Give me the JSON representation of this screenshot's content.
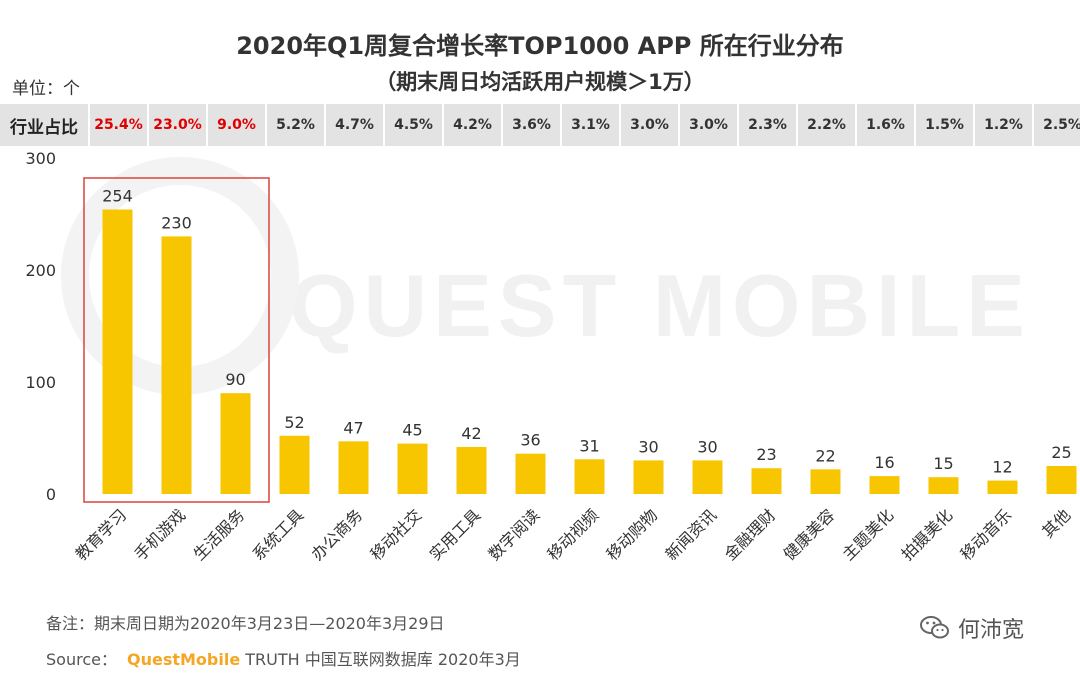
{
  "title": "2020年Q1周复合增长率TOP1000 APP 所在行业分布",
  "subtitle": "（期末周日均活跃用户规模＞1万）",
  "unit_label": "单位：个",
  "share_header": "行业占比",
  "shares": [
    "25.4%",
    "23.0%",
    "9.0%",
    "5.2%",
    "4.7%",
    "4.5%",
    "4.2%",
    "3.6%",
    "3.1%",
    "3.0%",
    "3.0%",
    "2.3%",
    "2.2%",
    "1.6%",
    "1.5%",
    "1.2%",
    "2.5%"
  ],
  "note": "备注：期末周日期为2020年3月23日—2020年3月29日",
  "source_prefix": "Source：",
  "source_brand": "QuestMobile",
  "source_suffix": "TRUTH 中国互联网数据库 2020年3月",
  "wechat_name": "何沛宽",
  "colors": {
    "bar": "#f7c600",
    "highlight_text": "#e00000",
    "highlight_box": "#d9443a",
    "share_bg": "#e3e3e3"
  },
  "chart_data": {
    "type": "bar",
    "title": "2020年Q1周复合增长率TOP1000 APP 所在行业分布",
    "ylabel": "单位：个",
    "xlabel": "",
    "ylim": [
      0,
      300
    ],
    "yticks": [
      0,
      100,
      200,
      300
    ],
    "categories": [
      "教育学习",
      "手机游戏",
      "生活服务",
      "系统工具",
      "办公商务",
      "移动社交",
      "实用工具",
      "数字阅读",
      "移动视频",
      "移动购物",
      "新闻资讯",
      "金融理财",
      "健康美容",
      "主题美化",
      "拍摄美化",
      "移动音乐",
      "其他"
    ],
    "values": [
      254,
      230,
      90,
      52,
      47,
      45,
      42,
      36,
      31,
      30,
      30,
      23,
      22,
      16,
      15,
      12,
      25
    ],
    "highlighted": [
      "教育学习",
      "手机游戏",
      "生活服务"
    ]
  }
}
